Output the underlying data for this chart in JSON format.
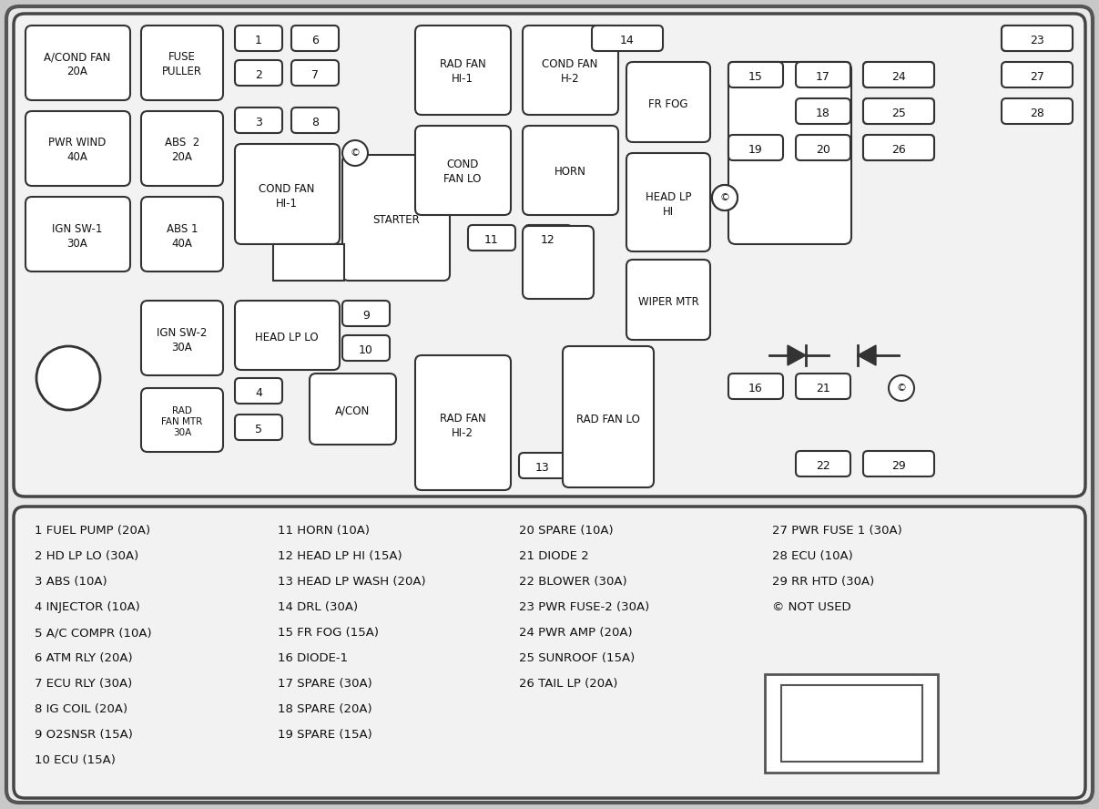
{
  "bg_color": "#c8c8c8",
  "panel_bg": "#f2f2f2",
  "box_fill": "#ffffff",
  "box_edge": "#333333",
  "legend_col1": [
    "1 FUEL PUMP (20A)",
    "2 HD LP LO (30A)",
    "3 ABS (10A)",
    "4 INJECTOR (10A)",
    "5 A/C COMPR (10A)",
    "6 ATM RLY (20A)",
    "7 ECU RLY (30A)",
    "8 IG COIL (20A)",
    "9 O2SNSR (15A)",
    "10 ECU (15A)"
  ],
  "legend_col2": [
    "11 HORN (10A)",
    "12 HEAD LP HI (15A)",
    "13 HEAD LP WASH (20A)",
    "14 DRL (30A)",
    "15 FR FOG (15A)",
    "16 DIODE-1",
    "17 SPARE (30A)",
    "18 SPARE (20A)",
    "19 SPARE (15A)"
  ],
  "legend_col3": [
    "20 SPARE (10A)",
    "21 DIODE 2",
    "22 BLOWER (30A)",
    "23 PWR FUSE-2 (30A)",
    "24 PWR AMP (20A)",
    "25 SUNROOF (15A)",
    "26 TAIL LP (20A)"
  ],
  "legend_col4": [
    "27 PWR FUSE 1 (30A)",
    "28 ECU (10A)",
    "29 RR HTD (30A)",
    "© NOT USED"
  ]
}
